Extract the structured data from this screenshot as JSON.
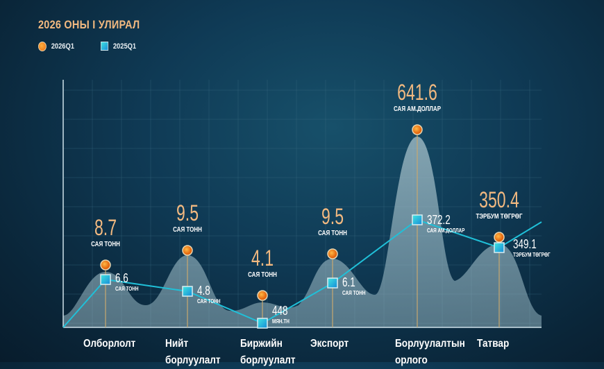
{
  "chart_data": {
    "type": "area",
    "title": "2026 ОНЫ I УЛИРАЛ",
    "legend": [
      "2026Q1",
      "2025Q1"
    ],
    "legend_position": "top-left",
    "categories": [
      "Олборлолт",
      "Нийт борлуулалт",
      "Биржийн борлуулалт",
      "Экспорт",
      "Борлуулалтын орлого",
      "Татвар"
    ],
    "series": [
      {
        "name": "2026Q1",
        "values": [
          "8.7",
          "9.5",
          "4.1",
          "9.5",
          "641.6",
          "350.4"
        ],
        "units": [
          "САЯ ТОНН",
          "САЯ ТОНН",
          "САЯ ТОНН",
          "САЯ ТОНН",
          "САЯ АМ.ДОЛЛАР",
          "ТЭРБУМ ТӨГРӨГ"
        ]
      },
      {
        "name": "2025Q1",
        "values": [
          "6.6",
          "4.8",
          "448",
          "6.1",
          "372.2",
          "349.1"
        ],
        "units": [
          "САЯ ТОНН",
          "САЯ ТОНН",
          "МЯН.ТН",
          "САЯ ТОНН",
          "САЯ АМ.ДОЛЛАР",
          "ТЭРБУМ ТӨГРӨГ"
        ]
      }
    ],
    "colors": {
      "2026Q1": "#f08a20",
      "2025Q1": "#20c0d8",
      "accent": "#f2b980"
    },
    "grid": true
  }
}
